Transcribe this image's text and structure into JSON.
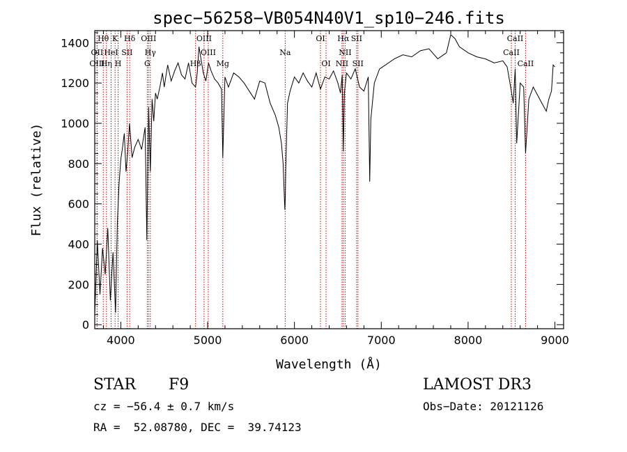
{
  "chart_data": {
    "type": "line",
    "title": "spec−56258−VB054N40V1_sp10−246.fits",
    "xlabel": "Wavelength (Å)",
    "ylabel": "Flux (relative)",
    "xlim": [
      3700,
      9100
    ],
    "ylim": [
      -20,
      1460
    ],
    "xticks": [
      4000,
      5000,
      6000,
      7000,
      8000,
      9000
    ],
    "yticks": [
      0,
      200,
      400,
      600,
      800,
      1000,
      1200,
      1400
    ],
    "line_color": "#000000",
    "marker_color": "#cc0000",
    "grid": false,
    "series": [
      {
        "x": [
          3700,
          3730,
          3760,
          3790,
          3820,
          3850,
          3880,
          3910,
          3940,
          3960,
          3980,
          4000,
          4020,
          4040,
          4060,
          4080,
          4100,
          4130,
          4160,
          4200,
          4240,
          4280,
          4300,
          4320,
          4340,
          4360,
          4380,
          4400,
          4420,
          4450,
          4480,
          4500,
          4540,
          4580,
          4620,
          4660,
          4700,
          4740,
          4780,
          4820,
          4861,
          4880,
          4900,
          4920,
          4950,
          4980,
          5010,
          5040,
          5080,
          5120,
          5160,
          5175,
          5200,
          5240,
          5300,
          5360,
          5420,
          5480,
          5540,
          5600,
          5660,
          5720,
          5780,
          5820,
          5850,
          5870,
          5885,
          5890,
          5895,
          5900,
          5920,
          5950,
          6000,
          6050,
          6100,
          6150,
          6200,
          6250,
          6300,
          6350,
          6400,
          6450,
          6500,
          6530,
          6550,
          6563,
          6575,
          6600,
          6650,
          6700,
          6750,
          6800,
          6850,
          6867,
          6880,
          6920,
          6980,
          7050,
          7150,
          7250,
          7350,
          7450,
          7550,
          7650,
          7750,
          7800,
          7850,
          7900,
          8000,
          8100,
          8200,
          8300,
          8400,
          8450,
          8498,
          8520,
          8542,
          8560,
          8600,
          8640,
          8662,
          8700,
          8750,
          8800,
          8850,
          8900,
          8930,
          8960,
          8980,
          9000
        ],
        "y": [
          50,
          420,
          150,
          380,
          250,
          480,
          120,
          360,
          60,
          500,
          700,
          820,
          880,
          950,
          760,
          860,
          1000,
          830,
          880,
          920,
          870,
          980,
          420,
          1080,
          760,
          1120,
          1010,
          1150,
          1120,
          1180,
          1250,
          1180,
          1290,
          1210,
          1260,
          1300,
          1240,
          1220,
          1300,
          1200,
          1180,
          1250,
          1380,
          1330,
          1250,
          1210,
          1300,
          1260,
          1220,
          1200,
          1170,
          830,
          1230,
          1180,
          1250,
          1230,
          1200,
          1160,
          1120,
          1210,
          1200,
          1100,
          1040,
          980,
          900,
          800,
          620,
          570,
          640,
          780,
          1100,
          1160,
          1230,
          1200,
          1250,
          1210,
          1180,
          1250,
          1170,
          1230,
          1220,
          1260,
          1200,
          1150,
          1240,
          860,
          1150,
          1250,
          1220,
          1270,
          1180,
          1160,
          1230,
          710,
          1020,
          1200,
          1270,
          1290,
          1320,
          1340,
          1330,
          1360,
          1370,
          1320,
          1350,
          1440,
          1420,
          1380,
          1350,
          1330,
          1320,
          1300,
          1310,
          1280,
          1160,
          1100,
          1270,
          900,
          1200,
          1180,
          850,
          1120,
          1180,
          1140,
          1100,
          1060,
          1120,
          1160,
          1290,
          1280
        ]
      }
    ],
    "lines": [
      {
        "label": "Hθ",
        "x": 3798,
        "row": 0
      },
      {
        "label": "OII",
        "x": 3727,
        "row": 1
      },
      {
        "label": "OIII",
        "x": 3727,
        "row": 2
      },
      {
        "label": "Hη",
        "x": 3835,
        "row": 2
      },
      {
        "label": "HeI",
        "x": 3889,
        "row": 1
      },
      {
        "label": "K",
        "x": 3934,
        "row": 0
      },
      {
        "label": "H",
        "x": 3969,
        "row": 2
      },
      {
        "label": "SII",
        "x": 4072,
        "row": 1
      },
      {
        "label": "Hδ",
        "x": 4102,
        "row": 0
      },
      {
        "label": "OIII",
        "x": 4320,
        "row": 0
      },
      {
        "label": "Hγ",
        "x": 4340,
        "row": 1
      },
      {
        "label": "G",
        "x": 4305,
        "row": 2
      },
      {
        "label": "OIII",
        "x": 4959,
        "row": 0
      },
      {
        "label": "OIII",
        "x": 5007,
        "row": 1
      },
      {
        "label": "Hβ",
        "x": 4861,
        "row": 2
      },
      {
        "label": "Mg",
        "x": 5175,
        "row": 2
      },
      {
        "label": "Na",
        "x": 5893,
        "row": 1
      },
      {
        "label": "OI",
        "x": 6300,
        "row": 0
      },
      {
        "label": "OI",
        "x": 6364,
        "row": 2
      },
      {
        "label": "Hα",
        "x": 6563,
        "row": 0
      },
      {
        "label": "SII",
        "x": 6716,
        "row": 0
      },
      {
        "label": "NII",
        "x": 6584,
        "row": 1
      },
      {
        "label": "NII",
        "x": 6548,
        "row": 2
      },
      {
        "label": "SII",
        "x": 6731,
        "row": 2
      },
      {
        "label": "CaII",
        "x": 8542,
        "row": 0
      },
      {
        "label": "CaII",
        "x": 8498,
        "row": 1
      },
      {
        "label": "CaII",
        "x": 8662,
        "row": 2
      }
    ]
  },
  "info": {
    "class": "STAR",
    "subclass": "F9",
    "survey": "LAMOST DR3",
    "cz": "cz = −56.4 ± 0.7 km/s",
    "obs_date": "Obs−Date: 20121126",
    "radec": "RA =  52.08780, DEC =  39.74123"
  }
}
